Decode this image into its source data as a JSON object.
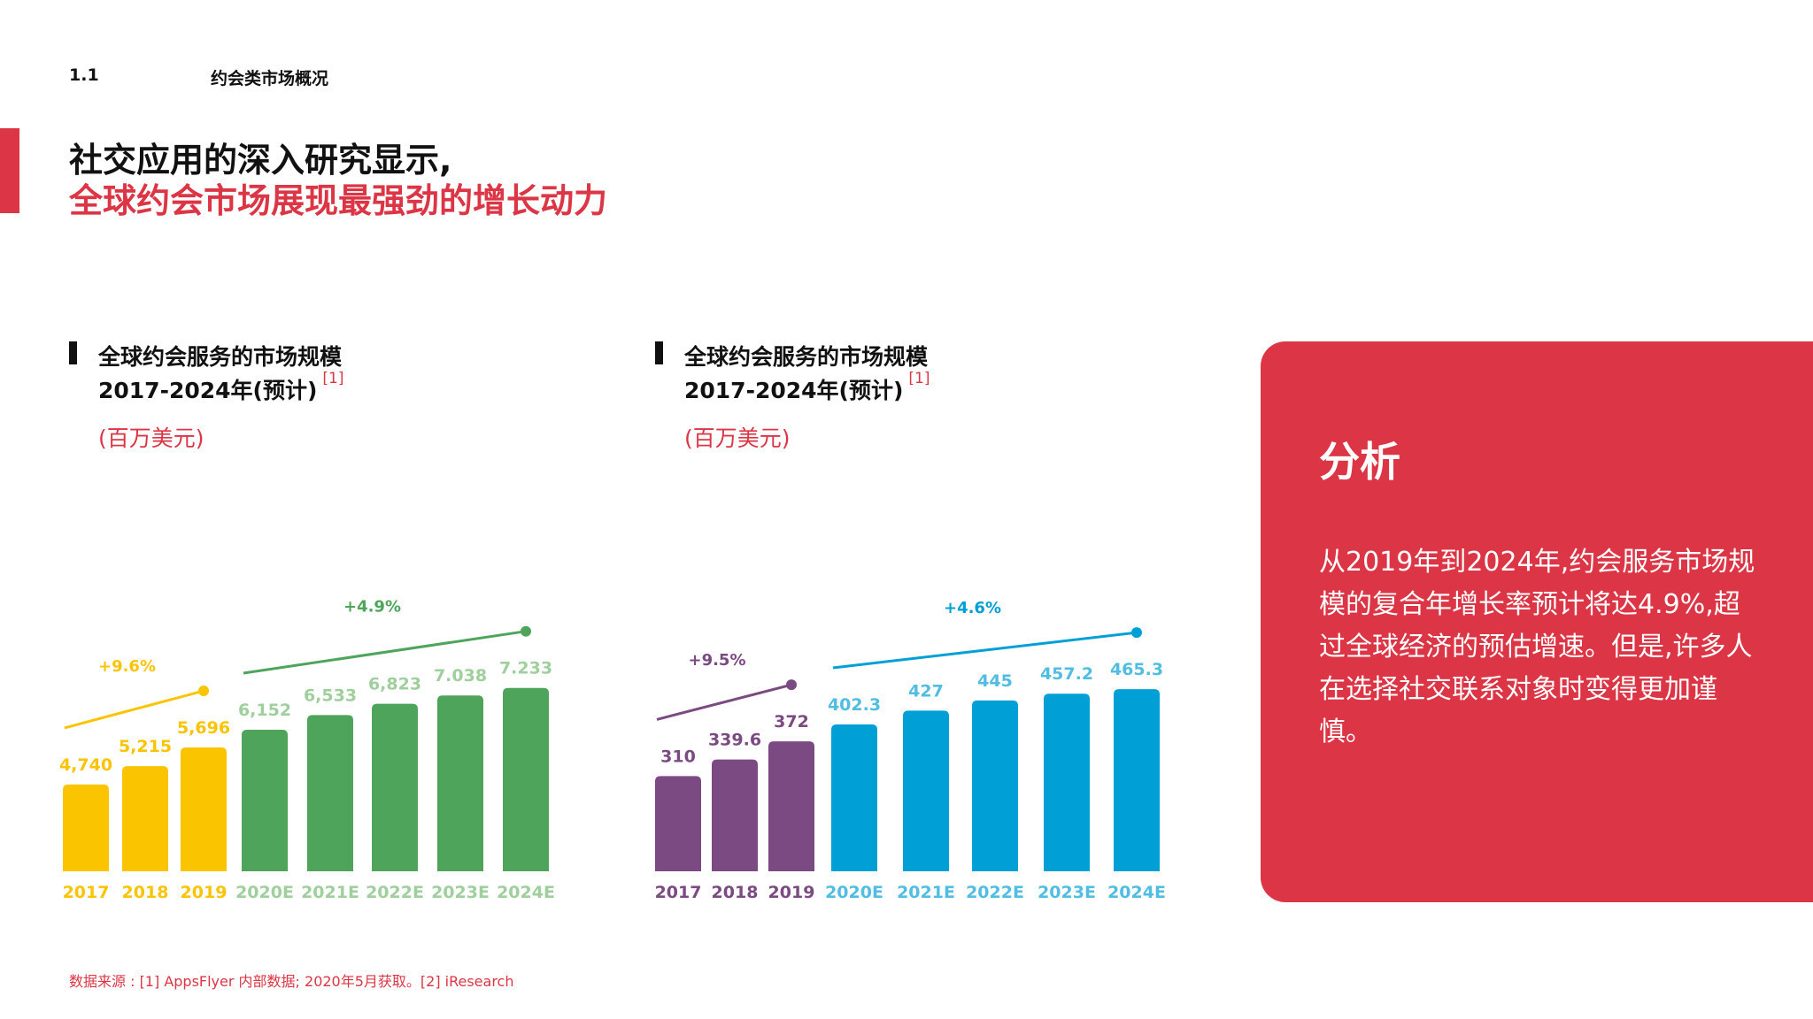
{
  "header": {
    "section_number": "1.1",
    "section_title": "约会类市场概况",
    "headline_line1": "社交应用的深入研究显示,",
    "headline_line2": "全球约会市场展现最强劲的增长动力",
    "accent_color": "#dc3545"
  },
  "chart_data": [
    {
      "type": "bar",
      "title_line1": "全球约会服务的市场规模",
      "title_line2": "2017-2024年(预计)",
      "reference": "[1]",
      "unit": "(百万美元)",
      "categories": [
        "2017",
        "2018",
        "2019",
        "2020E",
        "2021E",
        "2022E",
        "2023E",
        "2024E"
      ],
      "values": [
        4740,
        5215,
        5696,
        6152,
        6533,
        6823,
        7038,
        7233
      ],
      "value_labels": [
        "4,740",
        "5,215",
        "5,696",
        "6,152",
        "6,533",
        "6,823",
        "7.038",
        "7.233"
      ],
      "colors": [
        "#fbc400",
        "#fbc400",
        "#fbc400",
        "#4ea45a",
        "#4ea45a",
        "#4ea45a",
        "#4ea45a",
        "#4ea45a"
      ],
      "category_colors": [
        "#fbc400",
        "#fbc400",
        "#fbc400",
        "#9fcf9c",
        "#9fcf9c",
        "#9fcf9c",
        "#9fcf9c",
        "#9fcf9c"
      ],
      "label_colors": [
        "#fbc400",
        "#fbc400",
        "#fbc400",
        "#9fcf9c",
        "#9fcf9c",
        "#9fcf9c",
        "#9fcf9c",
        "#9fcf9c"
      ],
      "growth_lines": [
        {
          "label": "+9.6%",
          "from_index": 0,
          "to_index": 2,
          "color": "#fbc400"
        },
        {
          "label": "+4.9%",
          "from_index": 3,
          "to_index": 7,
          "color": "#4ea45a"
        }
      ]
    },
    {
      "type": "bar",
      "title_line1": "全球约会服务的市场规模",
      "title_line2": "2017-2024年(预计)",
      "reference": "[1]",
      "unit": "(百万美元)",
      "categories": [
        "2017",
        "2018",
        "2019",
        "2020E",
        "2021E",
        "2022E",
        "2023E",
        "2024E"
      ],
      "values": [
        310,
        339.6,
        372,
        402.3,
        427,
        445,
        457.2,
        465.3
      ],
      "value_labels": [
        "310",
        "339.6",
        "372",
        "402.3",
        "427",
        "445",
        "457.2",
        "465.3"
      ],
      "colors": [
        "#7c4a82",
        "#7c4a82",
        "#7c4a82",
        "#00a0d6",
        "#00a0d6",
        "#00a0d6",
        "#00a0d6",
        "#00a0d6"
      ],
      "category_colors": [
        "#7c4a82",
        "#7c4a82",
        "#7c4a82",
        "#52bde3",
        "#52bde3",
        "#52bde3",
        "#52bde3",
        "#52bde3"
      ],
      "label_colors": [
        "#7c4a82",
        "#7c4a82",
        "#7c4a82",
        "#52bde3",
        "#52bde3",
        "#52bde3",
        "#52bde3",
        "#52bde3"
      ],
      "growth_lines": [
        {
          "label": "+9.5%",
          "from_index": 0,
          "to_index": 2,
          "color": "#7c4a82"
        },
        {
          "label": "+4.6%",
          "from_index": 3,
          "to_index": 7,
          "color": "#00a0d6"
        }
      ]
    }
  ],
  "analysis": {
    "title": "分析",
    "body": "从2019年到2024年,约会服务市场规模的复合年增长率预计将达4.9%,超过全球经济的预估增速。但是,许多人在选择社交联系对象时变得更加谨慎。"
  },
  "footnote": "数据来源 : [1] AppsFlyer 内部数据; 2020年5月获取。[2] iResearch"
}
